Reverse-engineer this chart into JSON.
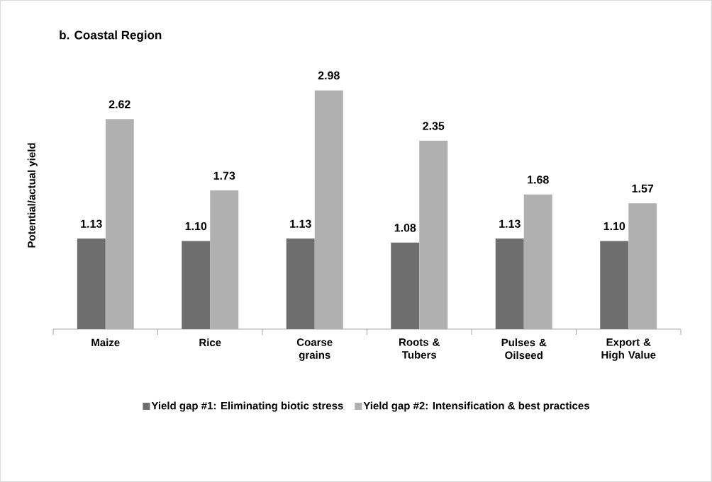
{
  "chart_data": {
    "type": "bar",
    "title": "b. Coastal Region",
    "ylabel": "Potential/actual yield",
    "categories": [
      "Maize",
      "Rice",
      "Coarse grains",
      "Roots & Tubers",
      "Pulses & Oilseed",
      "Export & High Value"
    ],
    "tick_labels": "x",
    "legend": "bottom",
    "series": [
      {
        "name": "Yield gap #1: Eliminating  biotic stress",
        "color": "#6e6e6e",
        "values": [
          1.13,
          1.1,
          1.13,
          1.08,
          1.13,
          1.1
        ],
        "value_labels": [
          "1.13",
          "1.10",
          "1.13",
          "1.08",
          "1.13",
          "1.10"
        ]
      },
      {
        "name": "Yield gap #2: Intensification & best practices",
        "color": "#b0b0b0",
        "values": [
          2.62,
          1.73,
          2.98,
          2.35,
          1.68,
          1.57
        ],
        "value_labels": [
          "2.62",
          "1.73",
          "2.98",
          "2.35",
          "1.68",
          "1.57"
        ]
      }
    ]
  }
}
